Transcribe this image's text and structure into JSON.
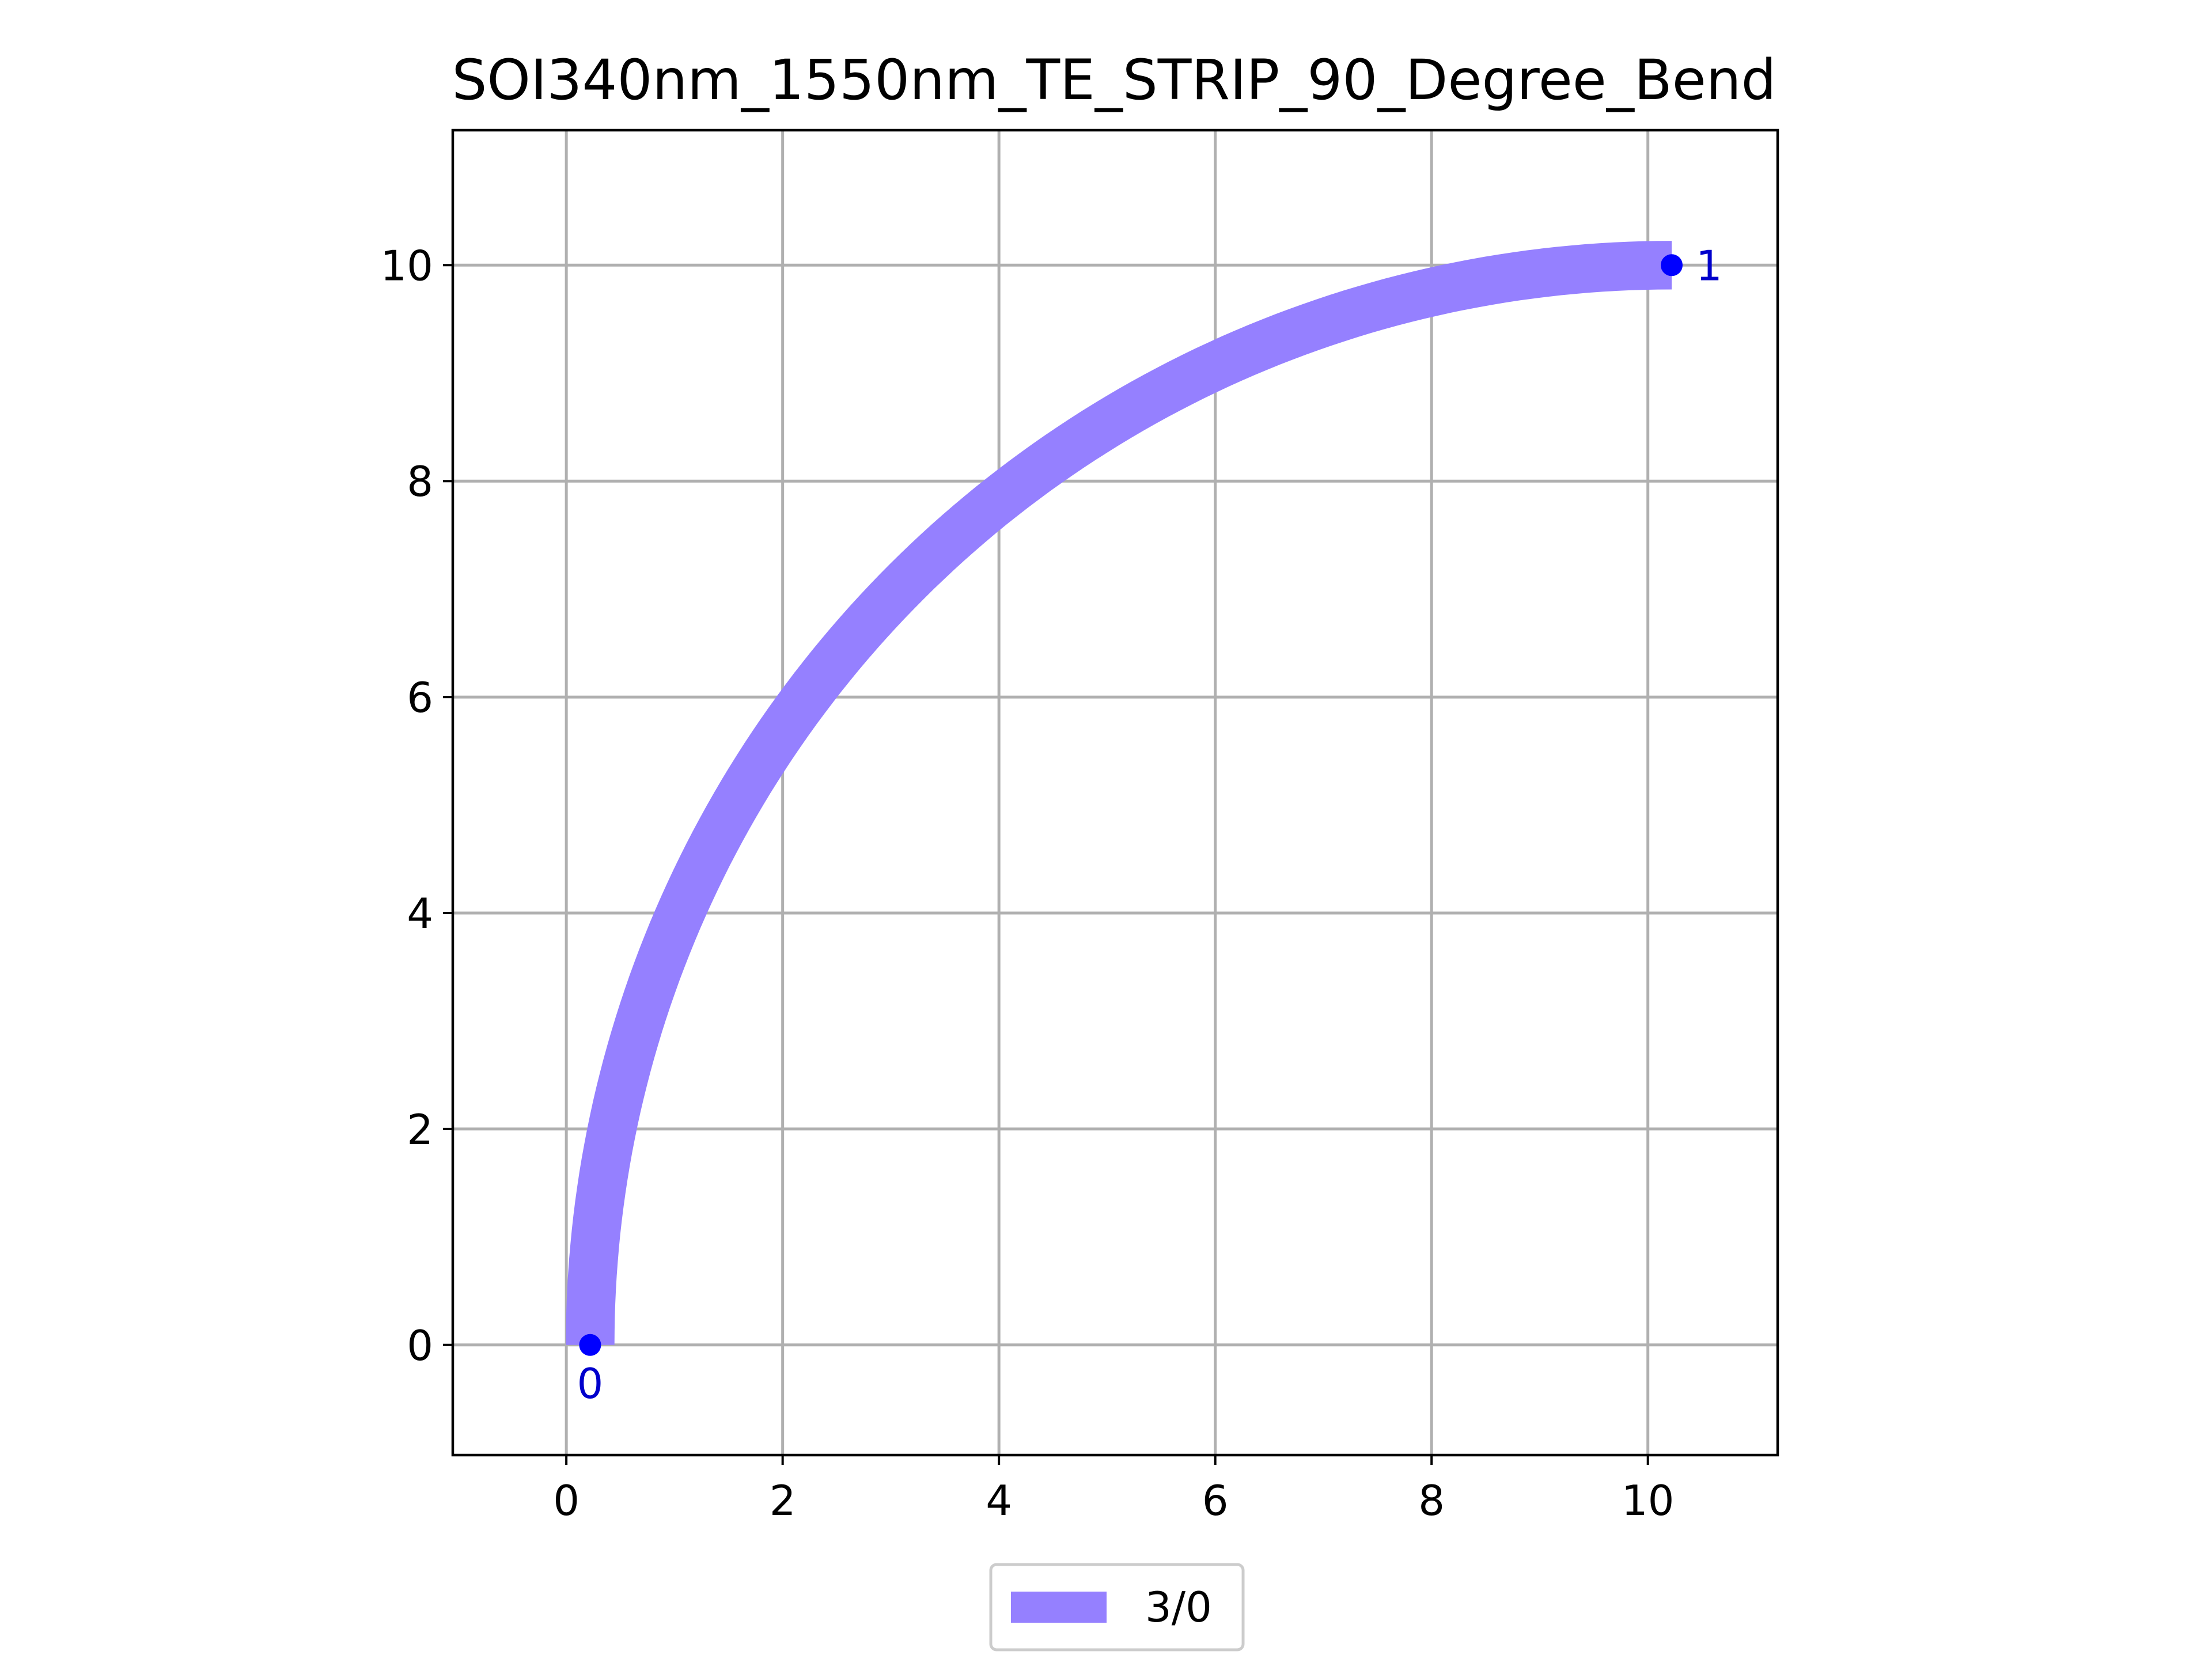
{
  "chart_data": {
    "type": "scatter",
    "title": "SOI340nm_1550nm_TE_STRIP_90_Degree_Bend",
    "xlabel": "",
    "ylabel": "",
    "xlim": [
      -1.05,
      11.2
    ],
    "ylim": [
      -1.02,
      11.25
    ],
    "xticks": [
      0,
      2,
      4,
      6,
      8,
      10
    ],
    "yticks": [
      0,
      2,
      4,
      6,
      8,
      10
    ],
    "xtick_labels": [
      "0",
      "2",
      "4",
      "6",
      "8",
      "10"
    ],
    "ytick_labels": [
      "0",
      "2",
      "4",
      "6",
      "8",
      "10"
    ],
    "grid": true,
    "legend_position": "bottom-center",
    "waveguide": {
      "layer_label": "3/0",
      "color": "#9580ff",
      "start": [
        0.22,
        0
      ],
      "end": [
        10.22,
        10
      ],
      "center": [
        10.22,
        0
      ],
      "radius": 10,
      "width": 0.45
    },
    "ports": [
      {
        "label": "0",
        "x": 0.22,
        "y": 0,
        "label_placement": "below"
      },
      {
        "label": "1",
        "x": 10.22,
        "y": 10,
        "label_placement": "right"
      }
    ],
    "port_color": "#0000ff",
    "port_label_color": "#0000cc"
  }
}
